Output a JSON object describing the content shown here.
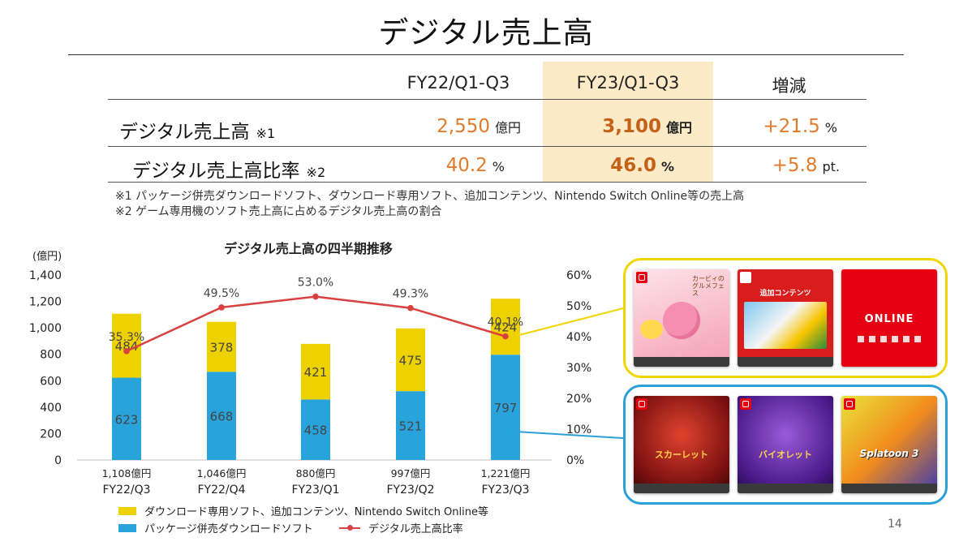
{
  "title": "デジタル売上高",
  "table": {
    "headers": [
      "FY22/Q1-Q3",
      "FY23/Q1-Q3",
      "増減"
    ],
    "rows": [
      {
        "label": "デジタル売上高",
        "note": "※1",
        "fy22": "2,550",
        "fy22_unit": "億円",
        "fy23": "3,100",
        "fy23_unit": "億円",
        "change": "+21.5",
        "change_unit": "%"
      },
      {
        "label": "デジタル売上高比率",
        "note": "※2",
        "fy22": "40.2",
        "fy22_unit": "%",
        "fy23": "46.0",
        "fy23_unit": "%",
        "change": "+5.8",
        "change_unit": "pt."
      }
    ]
  },
  "footnotes": [
    "※1 パッケージ併売ダウンロードソフト、ダウンロード専用ソフト、追加コンテンツ、Nintendo Switch Online等の売上高",
    "※2 ゲーム専用機のソフト売上高に占めるデジタル売上高の割合"
  ],
  "chart_data": {
    "type": "bar",
    "stacked": true,
    "title": "デジタル売上高の四半期推移",
    "y_unit_label": "(億円)",
    "ylim": [
      0,
      1400
    ],
    "y_ticks": [
      "0",
      "200",
      "400",
      "600",
      "800",
      "1,000",
      "1,200",
      "1,400"
    ],
    "y2lim": [
      0,
      60
    ],
    "y2_ticks": [
      "0%",
      "10%",
      "20%",
      "30%",
      "40%",
      "50%",
      "60%"
    ],
    "categories": [
      "FY22/Q3",
      "FY22/Q4",
      "FY23/Q1",
      "FY23/Q2",
      "FY23/Q3"
    ],
    "totals": [
      "1,108億円",
      "1,046億円",
      "880億円",
      "997億円",
      "1,221億円"
    ],
    "series": [
      {
        "name": "パッケージ併売ダウンロードソフト",
        "color": "#29a3dc",
        "values": [
          623,
          668,
          458,
          521,
          797
        ]
      },
      {
        "name": "ダウンロード専用ソフト、追加コンテンツ、Nintendo Switch Online等",
        "color": "#eed200",
        "values": [
          484,
          378,
          421,
          475,
          424
        ]
      },
      {
        "name": "デジタル売上高比率",
        "color": "#d94040",
        "axis": "y2",
        "type": "line",
        "values": [
          35.3,
          49.5,
          53.0,
          49.3,
          40.1
        ],
        "labels": [
          "35.3%",
          "49.5%",
          "53.0%",
          "49.3%",
          "40.1%"
        ]
      }
    ],
    "legend": "bottom-left"
  },
  "images": {
    "top_group": {
      "border_color": "#f0d500",
      "cards": [
        {
          "name": "kirby",
          "text": "カービィのグルメフェス"
        },
        {
          "name": "mario-kart-dlc",
          "text": "追加コンテンツ"
        },
        {
          "name": "nso",
          "text": "ONLINE"
        }
      ]
    },
    "bottom_group": {
      "border_color": "#2a9fd8",
      "cards": [
        {
          "name": "pokemon-scarlet",
          "text": "スカーレット"
        },
        {
          "name": "pokemon-violet",
          "text": "バイオレット"
        },
        {
          "name": "splatoon3",
          "text": "Splatoon 3"
        }
      ]
    }
  },
  "page_number": "14"
}
